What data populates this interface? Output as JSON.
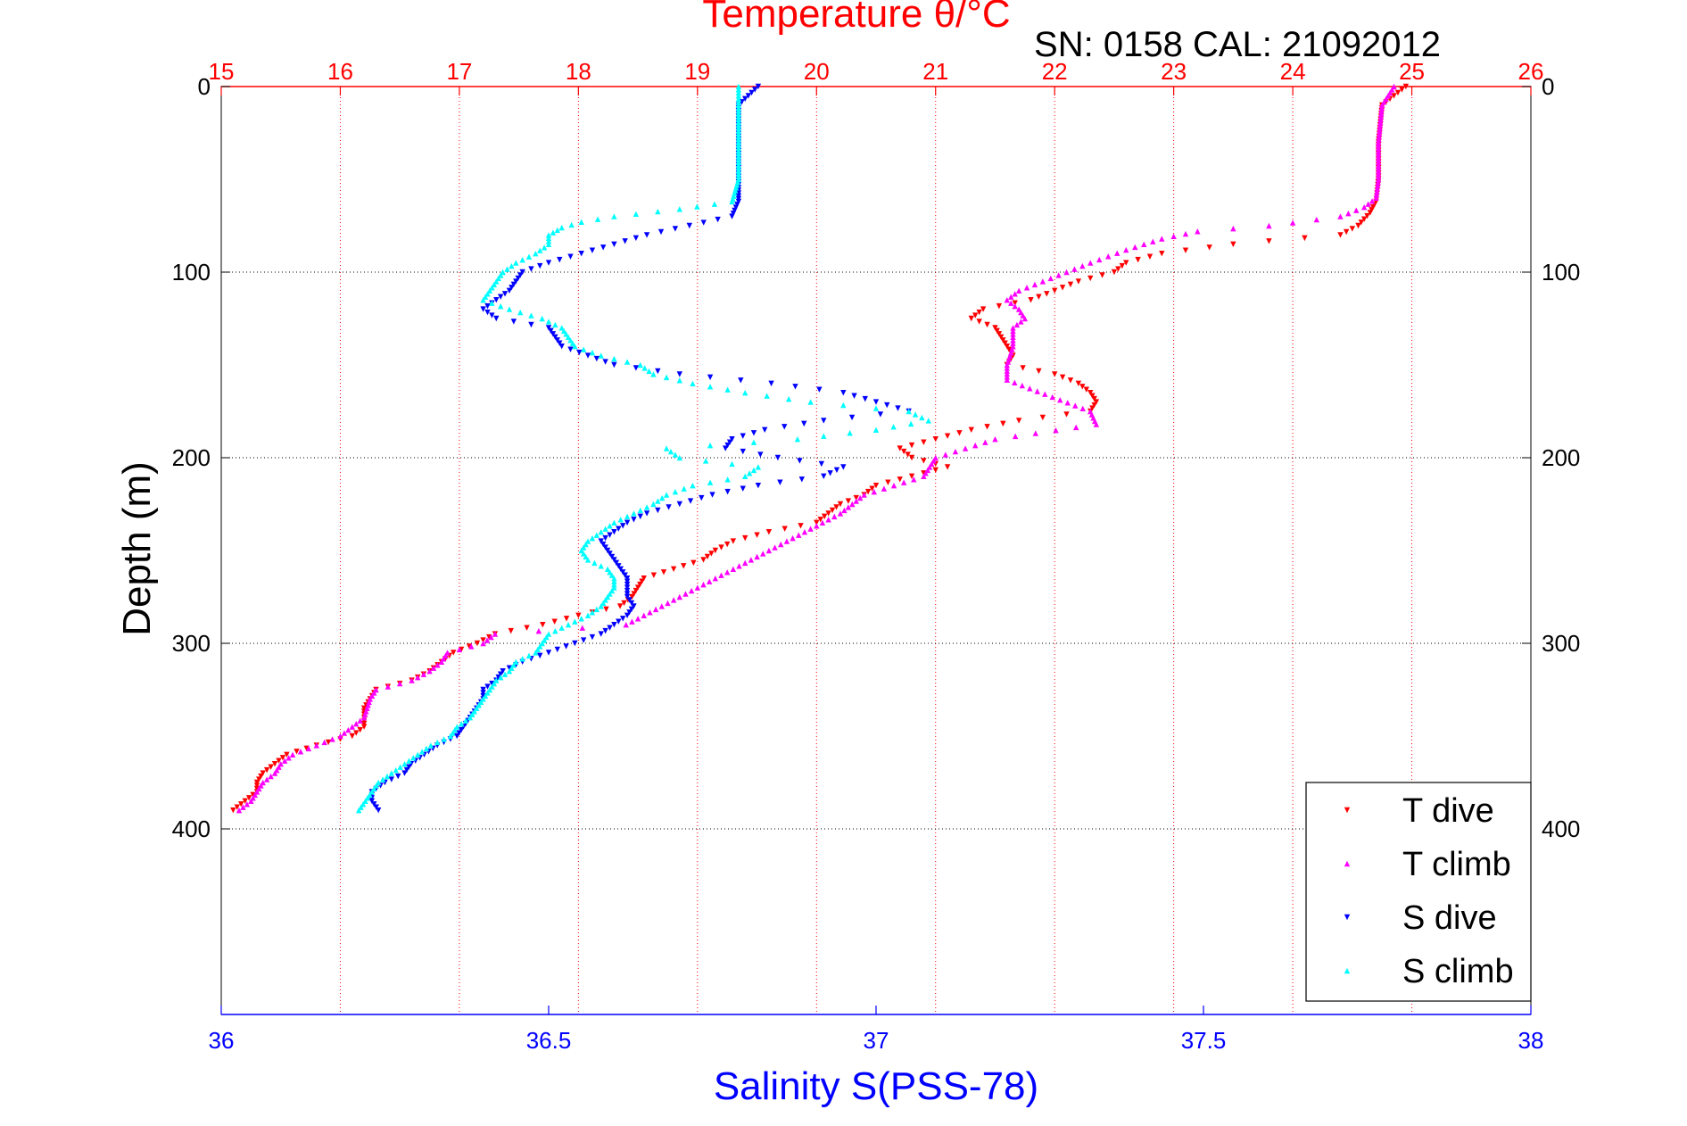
{
  "chart_data": {
    "type": "scatter",
    "title": "Temperature θ/°C",
    "annotation": "SN: 0158  CAL: 21092012",
    "ylabel": "Depth (m)",
    "y_reversed": true,
    "ylim": [
      0,
      500
    ],
    "y_ticks": [
      "0",
      "100",
      "200",
      "300",
      "400"
    ],
    "y_tick_values": [
      0,
      100,
      200,
      300,
      400
    ],
    "x_top": {
      "label": "Temperature θ/°C",
      "lim": [
        15,
        26
      ],
      "ticks": [
        "15",
        "16",
        "17",
        "18",
        "19",
        "20",
        "21",
        "22",
        "23",
        "24",
        "25",
        "26"
      ],
      "tick_values": [
        15,
        16,
        17,
        18,
        19,
        20,
        21,
        22,
        23,
        24,
        25,
        26
      ],
      "color": "#ff0000"
    },
    "x_bottom": {
      "label": "Salinity S(PSS-78)",
      "lim": [
        36,
        38
      ],
      "ticks": [
        "36",
        "36.5",
        "37",
        "37.5",
        "38"
      ],
      "tick_values": [
        36,
        36.5,
        37,
        37.5,
        38
      ],
      "color": "#0000ff"
    },
    "grid": true,
    "legend_position": "bottom-right",
    "series": [
      {
        "name": "T dive",
        "axis": "top",
        "color": "#ff0000",
        "marker": "triangle-down",
        "depth": [
          0,
          10,
          30,
          50,
          62,
          68,
          75,
          80,
          85,
          90,
          95,
          100,
          105,
          110,
          115,
          120,
          125,
          130,
          135,
          140,
          145,
          150,
          155,
          160,
          165,
          170,
          175,
          180,
          185,
          190,
          195,
          200,
          205,
          210,
          215,
          220,
          225,
          230,
          235,
          240,
          245,
          250,
          255,
          260,
          265,
          270,
          275,
          280,
          285,
          290,
          295,
          300,
          305,
          310,
          315,
          320,
          325,
          330,
          335,
          340,
          345,
          350,
          355,
          360,
          365,
          370,
          375,
          380,
          385,
          390
        ],
        "x": [
          24.95,
          24.75,
          24.72,
          24.72,
          24.7,
          24.65,
          24.55,
          24.4,
          23.5,
          22.9,
          22.6,
          22.5,
          22.2,
          22.0,
          21.8,
          21.4,
          21.3,
          21.5,
          21.55,
          21.6,
          21.65,
          21.6,
          22.0,
          22.2,
          22.3,
          22.35,
          22.3,
          21.7,
          21.3,
          21.0,
          20.7,
          20.8,
          21.1,
          20.8,
          20.5,
          20.4,
          20.2,
          20.1,
          20.0,
          19.6,
          19.3,
          19.15,
          19.05,
          18.8,
          18.55,
          18.5,
          18.45,
          18.35,
          18.0,
          17.7,
          17.3,
          17.15,
          16.95,
          16.85,
          16.75,
          16.6,
          16.3,
          16.25,
          16.2,
          16.2,
          16.2,
          16.1,
          15.8,
          15.55,
          15.45,
          15.35,
          15.3,
          15.3,
          15.2,
          15.1
        ]
      },
      {
        "name": "T climb",
        "axis": "top",
        "color": "#ff00ff",
        "marker": "triangle-up",
        "depth": [
          0,
          10,
          30,
          50,
          60,
          65,
          70,
          75,
          78,
          82,
          88,
          95,
          100,
          105,
          110,
          115,
          120,
          125,
          130,
          140,
          150,
          158,
          175,
          182,
          190,
          200,
          210,
          220,
          230,
          240,
          250,
          260,
          270,
          280,
          290,
          295,
          300,
          305,
          310,
          315,
          320,
          325,
          330,
          340,
          350,
          355,
          360,
          365,
          370,
          375,
          380,
          385,
          390
        ],
        "x": [
          24.85,
          24.75,
          24.72,
          24.72,
          24.7,
          24.6,
          24.4,
          23.8,
          23.2,
          22.9,
          22.6,
          22.3,
          22.1,
          21.9,
          21.7,
          21.6,
          21.7,
          21.75,
          21.65,
          21.65,
          21.6,
          21.6,
          22.3,
          22.35,
          21.5,
          21.0,
          20.9,
          20.4,
          20.2,
          19.9,
          19.6,
          19.3,
          19.0,
          18.7,
          18.4,
          17.3,
          17.2,
          16.9,
          16.85,
          16.75,
          16.6,
          16.3,
          16.25,
          16.2,
          16.0,
          15.8,
          15.6,
          15.5,
          15.45,
          15.35,
          15.3,
          15.25,
          15.15
        ]
      },
      {
        "name": "S dive",
        "axis": "bottom",
        "color": "#0000ff",
        "marker": "triangle-down",
        "depth": [
          0,
          10,
          30,
          50,
          62,
          70,
          80,
          85,
          90,
          95,
          100,
          105,
          110,
          115,
          120,
          125,
          130,
          140,
          145,
          150,
          155,
          160,
          165,
          170,
          175,
          180,
          185,
          190,
          195,
          200,
          205,
          210,
          215,
          220,
          225,
          230,
          235,
          240,
          245,
          250,
          255,
          260,
          265,
          270,
          275,
          280,
          285,
          290,
          295,
          300,
          305,
          310,
          315,
          320,
          325,
          330,
          335,
          340,
          345,
          350,
          355,
          360,
          365,
          370,
          375,
          380,
          385,
          390
        ],
        "x": [
          36.82,
          36.79,
          36.79,
          36.79,
          36.79,
          36.78,
          36.65,
          36.6,
          36.55,
          36.5,
          36.46,
          36.45,
          36.44,
          36.42,
          36.4,
          36.42,
          36.5,
          36.52,
          36.56,
          36.6,
          36.7,
          36.84,
          36.95,
          37.0,
          37.05,
          36.92,
          36.83,
          36.78,
          36.77,
          36.85,
          36.95,
          36.92,
          36.82,
          36.75,
          36.7,
          36.65,
          36.62,
          36.6,
          36.58,
          36.59,
          36.6,
          36.61,
          36.62,
          36.62,
          36.62,
          36.63,
          36.62,
          36.6,
          36.58,
          36.54,
          36.5,
          36.46,
          36.43,
          36.42,
          36.4,
          36.4,
          36.39,
          36.38,
          36.37,
          36.36,
          36.33,
          36.31,
          36.29,
          36.28,
          36.25,
          36.23,
          36.23,
          36.24
        ]
      },
      {
        "name": "S climb",
        "axis": "bottom",
        "color": "#00ffff",
        "marker": "triangle-up",
        "depth": [
          0,
          10,
          30,
          50,
          62,
          66,
          70,
          73,
          76,
          80,
          85,
          90,
          95,
          100,
          105,
          110,
          115,
          120,
          125,
          130,
          135,
          140,
          145,
          150,
          155,
          160,
          165,
          170,
          175,
          180,
          185,
          190,
          195,
          200,
          205,
          210,
          215,
          220,
          225,
          230,
          235,
          240,
          245,
          250,
          255,
          260,
          265,
          270,
          275,
          280,
          285,
          290,
          295,
          300,
          305,
          310,
          315,
          320,
          325,
          330,
          335,
          340,
          345,
          350,
          355,
          360,
          365,
          370,
          375,
          380,
          385,
          390
        ],
        "x": [
          36.79,
          36.79,
          36.79,
          36.79,
          36.78,
          36.7,
          36.6,
          36.55,
          36.52,
          36.5,
          36.5,
          36.48,
          36.45,
          36.43,
          36.42,
          36.41,
          36.4,
          36.44,
          36.49,
          36.52,
          36.53,
          36.54,
          36.58,
          36.64,
          36.66,
          36.72,
          36.8,
          36.9,
          37.05,
          37.08,
          37.0,
          36.88,
          36.68,
          36.7,
          36.82,
          36.8,
          36.72,
          36.68,
          36.66,
          36.63,
          36.6,
          36.58,
          36.56,
          36.55,
          36.56,
          36.59,
          36.6,
          36.6,
          36.59,
          36.58,
          36.56,
          36.53,
          36.5,
          36.49,
          36.48,
          36.45,
          36.44,
          36.42,
          36.41,
          36.4,
          36.39,
          36.38,
          36.36,
          36.35,
          36.32,
          36.3,
          36.28,
          36.26,
          36.24,
          36.23,
          36.22,
          36.21
        ]
      }
    ]
  }
}
